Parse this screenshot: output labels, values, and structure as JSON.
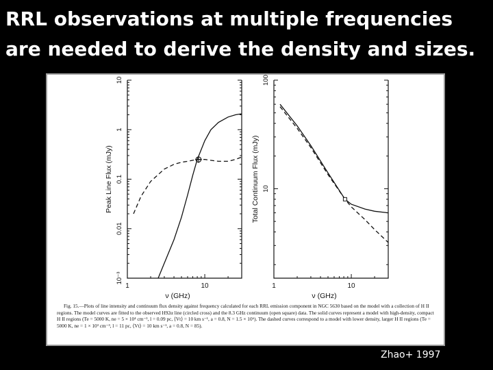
{
  "slide": {
    "title": "RRL observations at multiple frequencies are needed to derive the density and sizes.",
    "credit": "Zhao+ 1997"
  },
  "figure": {
    "caption": "Fig. 15.—Plots of line intensity and continuum flux density against frequency calculated for each RRL emission component in NGC 5630 based on the model with a collection of H II regions. The model curves are fitted to the observed H92α line (circled cross) and the 8.3 GHz continuum (open square) data. The solid curves represent a model with high-density, compact H II regions (Te = 5000 K, ne = 5 × 10⁴ cm⁻³, l = 0.09 pc, ⟨Vt⟩ = 10 km s⁻¹, a = 0.8, N = 1.5 × 10⁶). The dashed curves correspond to a model with lower density, larger H II regions (Te = 5000 K, ne = 1 × 10³ cm⁻³, l = 11 pc, ⟨Vt⟩ = 10 km s⁻¹, a = 0.8, N = 85).",
    "left_panel": {
      "ylabel": "Peak Line Flux (mJy)",
      "xlabel": "ν (GHz)",
      "yticks": [
        "10",
        "1",
        "0.1",
        "0.01",
        "10⁻³"
      ],
      "xticks": [
        "1",
        "10"
      ]
    },
    "right_panel": {
      "ylabel": "Total Continuum Flux (mJy)",
      "xlabel": "ν (GHz)",
      "yticks": [
        "100",
        "10"
      ],
      "xticks": [
        "1",
        "10"
      ]
    }
  },
  "chart_data": [
    {
      "type": "line",
      "title": "",
      "xlabel": "ν (GHz)",
      "ylabel": "Peak Line Flux (mJy)",
      "xscale": "log",
      "yscale": "log",
      "xlim": [
        1,
        30
      ],
      "ylim": [
        0.001,
        10
      ],
      "series": [
        {
          "style": "solid",
          "x": [
            2.5,
            3,
            4,
            5,
            6,
            7,
            8,
            10,
            12,
            15,
            20,
            25,
            30
          ],
          "y": [
            0.001,
            0.002,
            0.006,
            0.017,
            0.048,
            0.12,
            0.25,
            0.6,
            1.0,
            1.4,
            1.8,
            2.0,
            2.1
          ]
        },
        {
          "style": "dashed",
          "x": [
            1.2,
            1.5,
            2,
            3,
            4,
            5,
            6,
            8,
            10,
            12,
            15,
            20,
            25,
            30
          ],
          "y": [
            0.02,
            0.045,
            0.09,
            0.16,
            0.2,
            0.22,
            0.23,
            0.25,
            0.25,
            0.24,
            0.23,
            0.23,
            0.25,
            0.28
          ]
        }
      ],
      "markers": [
        {
          "shape": "circled-cross",
          "x": 8.3,
          "y": 0.25
        }
      ]
    },
    {
      "type": "line",
      "title": "",
      "xlabel": "ν (GHz)",
      "ylabel": "Total Continuum Flux (mJy)",
      "xscale": "log",
      "yscale": "log",
      "xlim": [
        1,
        30
      ],
      "ylim": [
        1.5,
        100
      ],
      "series": [
        {
          "style": "solid",
          "x": [
            1.2,
            2,
            3,
            5,
            8.3,
            10,
            15,
            20,
            30
          ],
          "y": [
            60,
            38,
            25,
            14,
            8,
            7.2,
            6.5,
            6.2,
            6.0
          ]
        },
        {
          "style": "dashed",
          "x": [
            1.2,
            2,
            3,
            5,
            8.3,
            10,
            15,
            20,
            30
          ],
          "y": [
            57,
            36,
            24,
            13.5,
            8,
            6.8,
            5.2,
            4.2,
            3.2
          ]
        }
      ],
      "markers": [
        {
          "shape": "open-square",
          "x": 8.3,
          "y": 8
        }
      ]
    }
  ]
}
